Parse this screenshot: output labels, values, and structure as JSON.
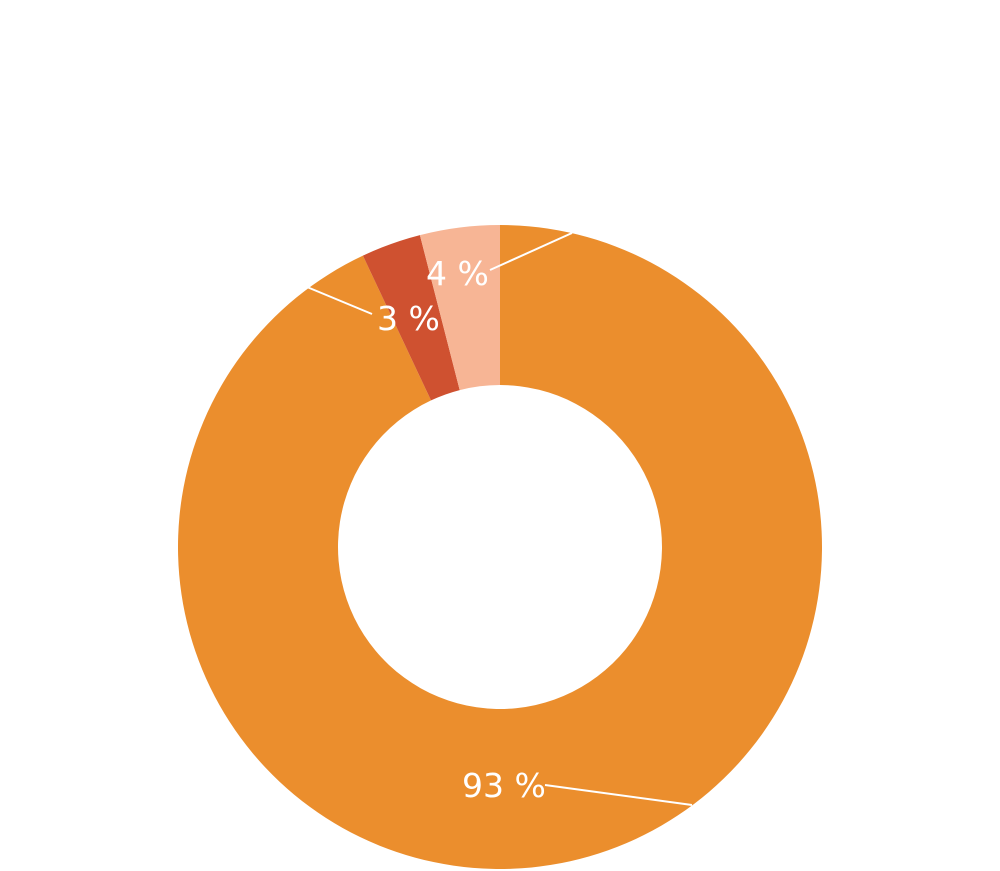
{
  "chart_data": {
    "type": "pie",
    "title": "",
    "slices": [
      {
        "label": "93 %",
        "value": 93,
        "color": "#EB8E2D"
      },
      {
        "label": "3 %",
        "value": 3,
        "color": "#CF5130"
      },
      {
        "label": "4 %",
        "value": 4,
        "color": "#F7B595"
      }
    ],
    "hole": "donut",
    "start": "top",
    "direction": "clockwise",
    "background": "#FFFFFF"
  }
}
